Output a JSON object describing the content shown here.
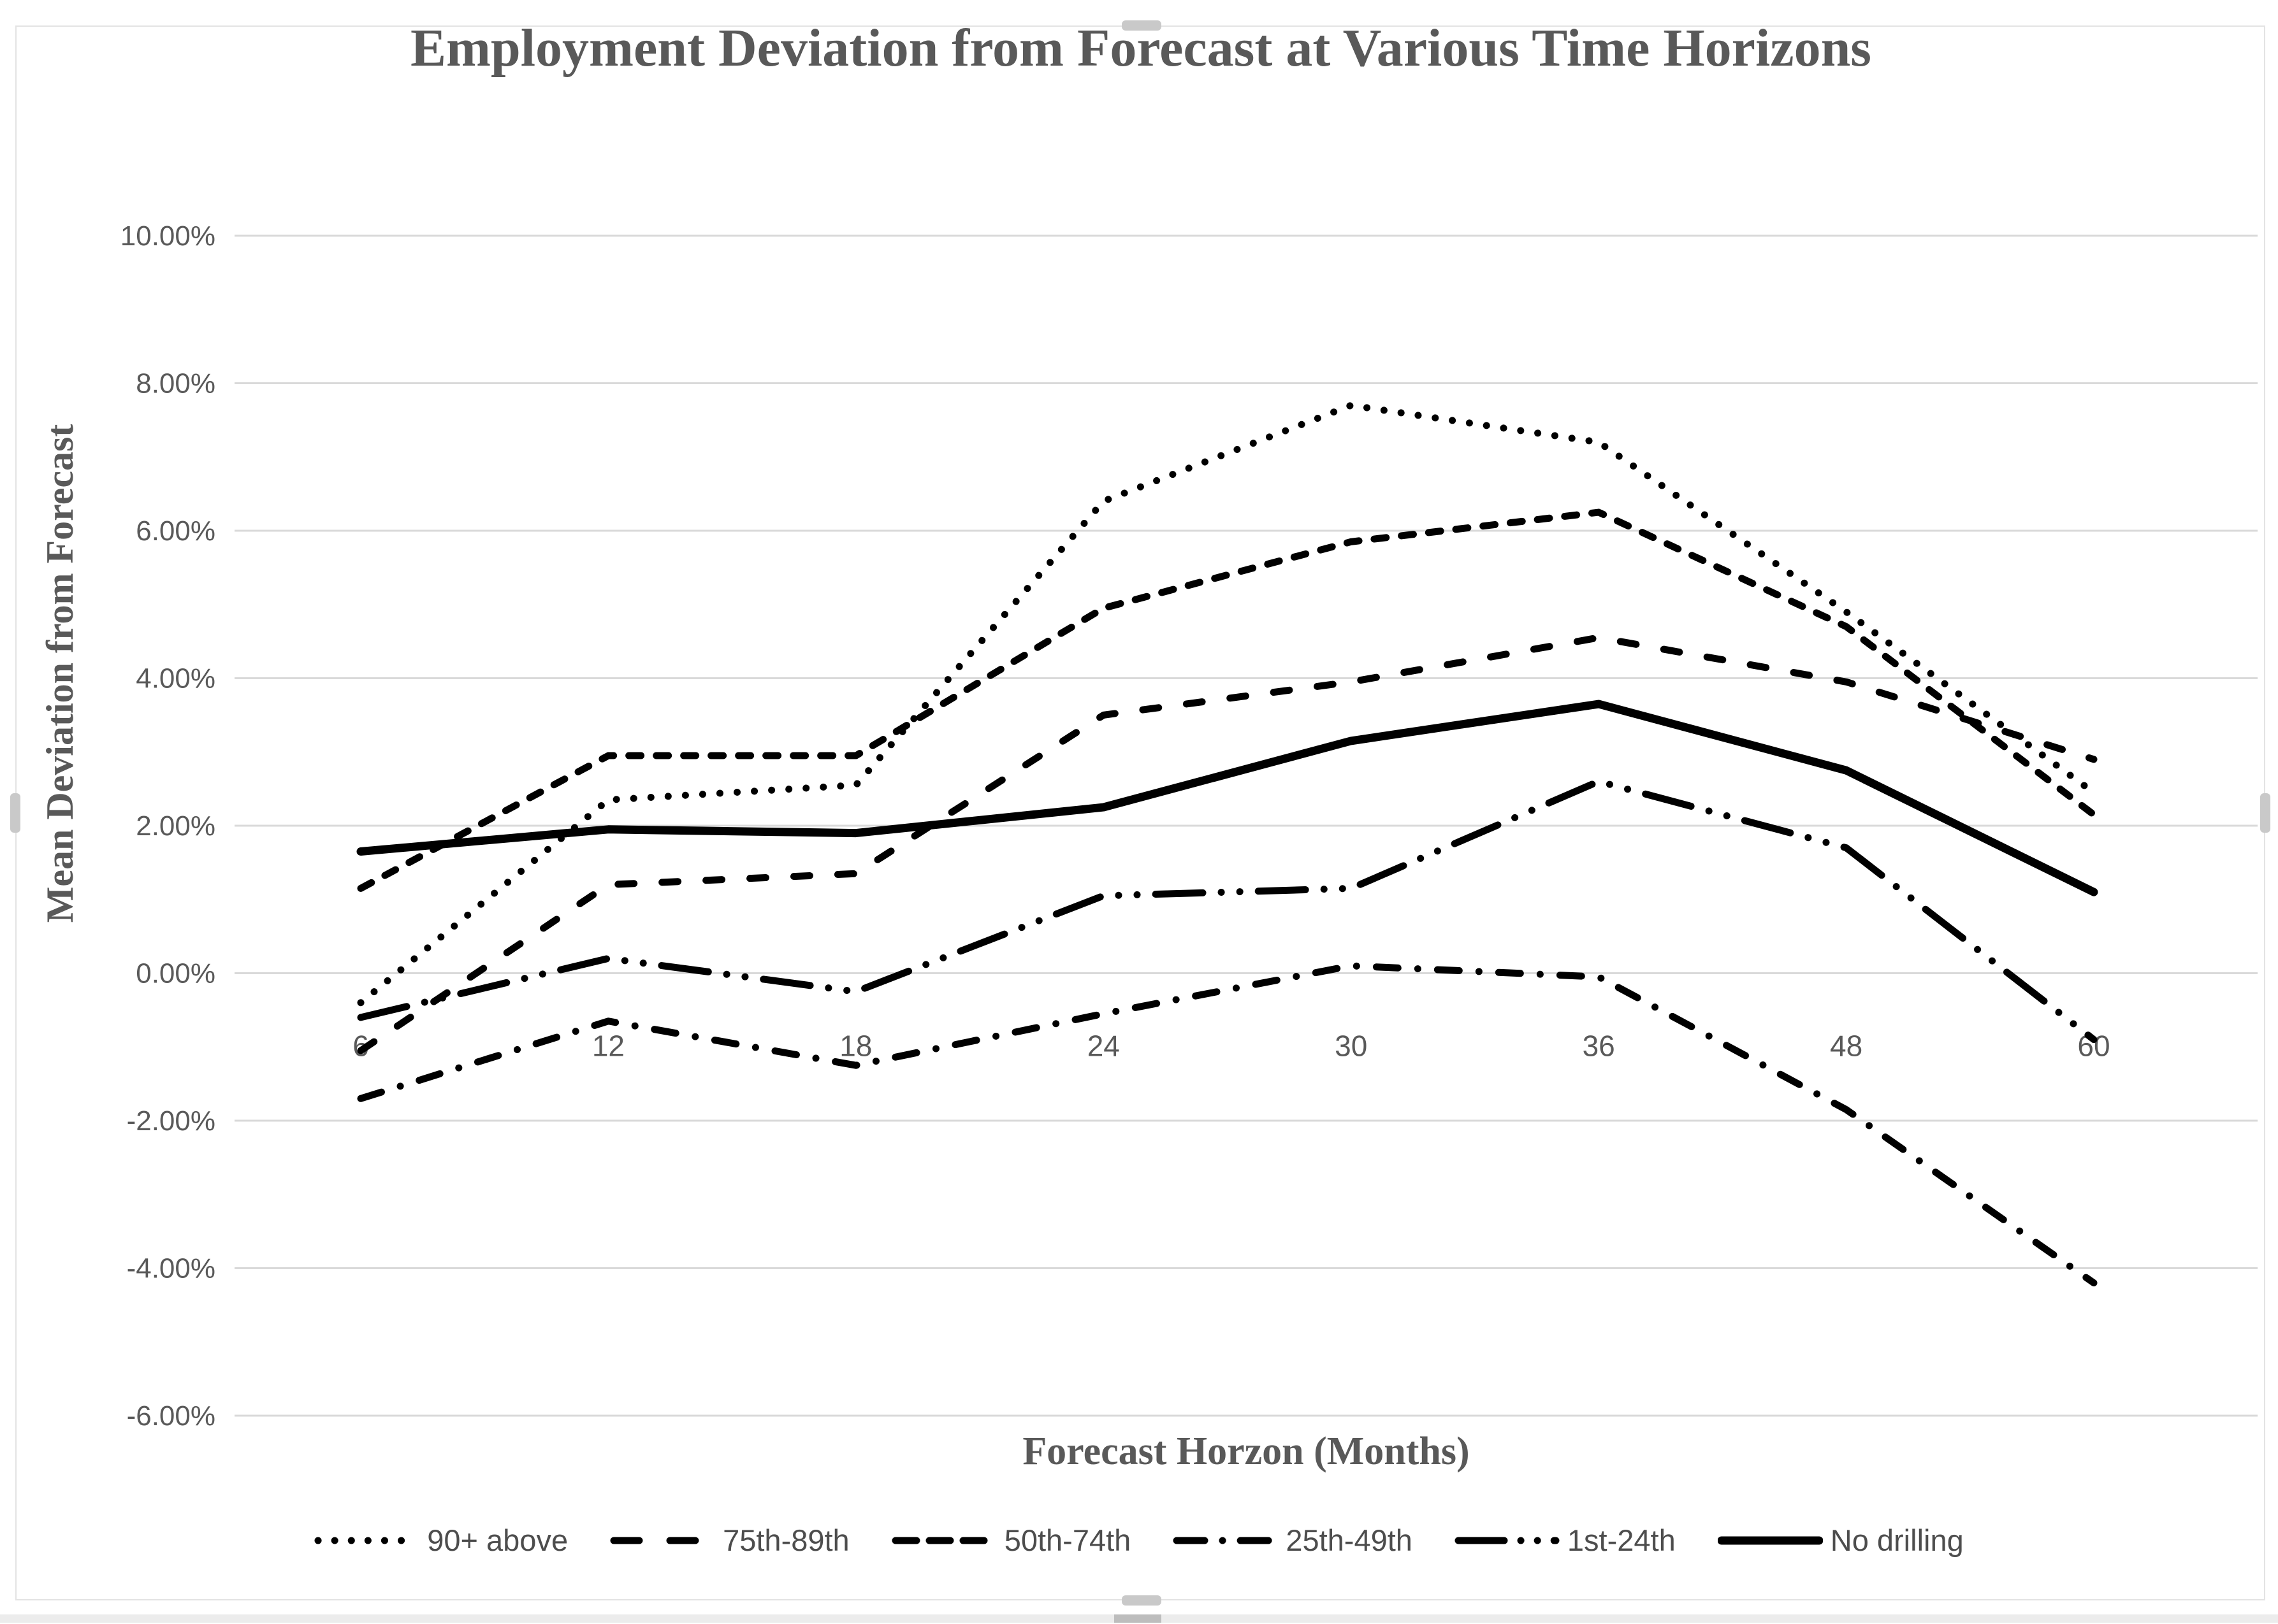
{
  "chart_data": {
    "type": "line",
    "title": "Employment Deviation from Forecast at Various Time Horizons",
    "xlabel": "Forecast Horzon (Months)",
    "ylabel": "Mean Deviation from Forecast",
    "categories": [
      "6",
      "12",
      "18",
      "24",
      "30",
      "36",
      "48",
      "60"
    ],
    "y_tick_labels": [
      "10.00%",
      "8.00%",
      "6.00%",
      "4.00%",
      "2.00%",
      "0.00%",
      "-2.00%",
      "-4.00%",
      "-6.00%"
    ],
    "ylim": [
      -6,
      10
    ],
    "y_tick_step": 2,
    "grid": "horizontal",
    "legend_position": "bottom",
    "line_color": "#000000",
    "gridline_color": "#d9d9d9",
    "text_color": "#595959",
    "series": [
      {
        "name": "90+ above",
        "style": "dotted",
        "values": [
          -0.4,
          2.35,
          2.55,
          6.4,
          7.7,
          7.2,
          4.9,
          2.45
        ]
      },
      {
        "name": "75th-89th",
        "style": "long-dash",
        "values": [
          -1.05,
          1.2,
          1.35,
          3.5,
          3.95,
          4.55,
          3.95,
          2.9
        ]
      },
      {
        "name": "50th-74th",
        "style": "dash",
        "values": [
          1.15,
          2.95,
          2.95,
          4.95,
          5.85,
          6.25,
          4.7,
          2.15
        ]
      },
      {
        "name": "25th-49th",
        "style": "dash-dot",
        "values": [
          -1.7,
          -0.65,
          -1.25,
          -0.55,
          0.1,
          -0.05,
          -1.85,
          -4.2
        ]
      },
      {
        "name": "1st-24th",
        "style": "long-dash-dot-dot",
        "values": [
          -0.6,
          0.2,
          -0.25,
          1.05,
          1.15,
          2.6,
          1.7,
          -0.9
        ]
      },
      {
        "name": "No drilling",
        "style": "solid",
        "values": [
          1.65,
          1.95,
          1.9,
          2.25,
          3.15,
          3.65,
          2.75,
          1.1
        ]
      }
    ]
  }
}
